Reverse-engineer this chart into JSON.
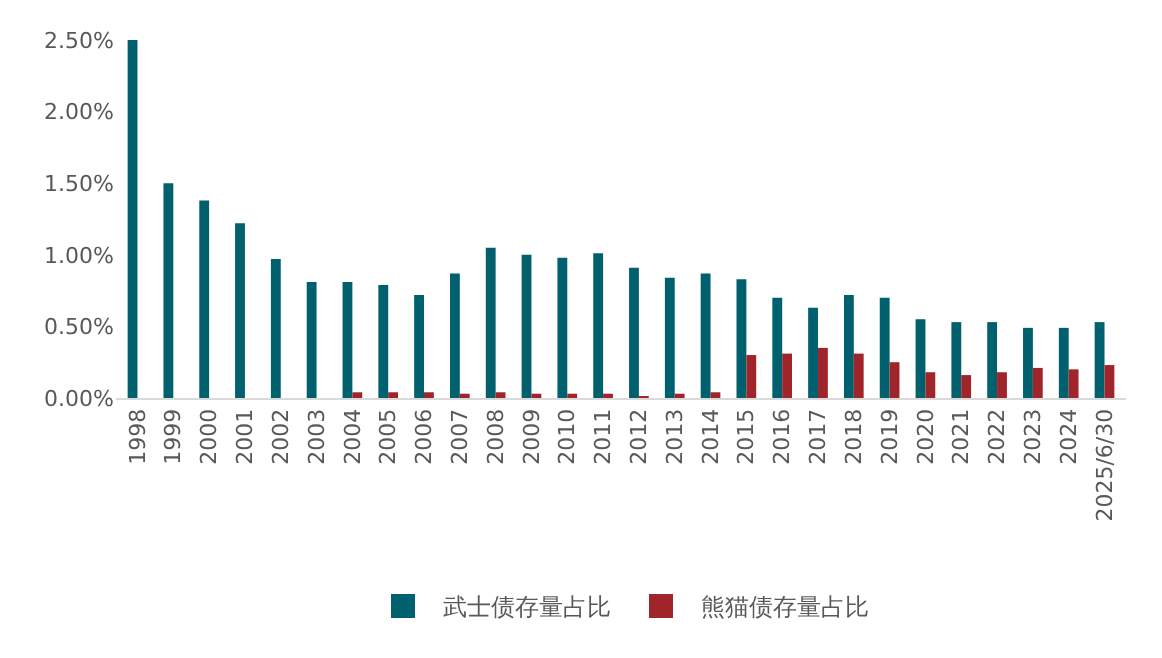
{
  "chart_data": {
    "type": "bar",
    "categories": [
      "1998",
      "1999",
      "2000",
      "2001",
      "2002",
      "2003",
      "2004",
      "2005",
      "2006",
      "2007",
      "2008",
      "2009",
      "2010",
      "2011",
      "2012",
      "2013",
      "2014",
      "2015",
      "2016",
      "2017",
      "2018",
      "2019",
      "2020",
      "2021",
      "2022",
      "2023",
      "2024",
      "2025/6/30"
    ],
    "series": [
      {
        "name": "武士债存量占比",
        "color": "#00606e",
        "values": [
          2.5,
          1.5,
          1.38,
          1.22,
          0.97,
          0.81,
          0.81,
          0.79,
          0.72,
          0.87,
          1.05,
          1.0,
          0.98,
          1.01,
          0.91,
          0.84,
          0.87,
          0.83,
          0.7,
          0.63,
          0.72,
          0.7,
          0.55,
          0.53,
          0.53,
          0.49,
          0.49,
          0.53
        ]
      },
      {
        "name": "熊猫债存量占比",
        "color": "#a0252b",
        "values": [
          null,
          null,
          null,
          null,
          null,
          null,
          0.04,
          0.04,
          0.04,
          0.03,
          0.04,
          0.03,
          0.03,
          0.03,
          0.01,
          0.03,
          0.04,
          0.3,
          0.31,
          0.35,
          0.31,
          0.25,
          0.18,
          0.16,
          0.18,
          0.21,
          0.2,
          0.23
        ]
      }
    ],
    "ylim": [
      0,
      2.5
    ],
    "yticks": [
      {
        "value": 0,
        "label": "0.00%"
      },
      {
        "value": 0.5,
        "label": "0.50%"
      },
      {
        "value": 1,
        "label": "1.00%"
      },
      {
        "value": 1.5,
        "label": "1.50%"
      },
      {
        "value": 2,
        "label": "2.00%"
      },
      {
        "value": 2.5,
        "label": "2.50%"
      }
    ],
    "grid": false,
    "legend": "bottom"
  }
}
